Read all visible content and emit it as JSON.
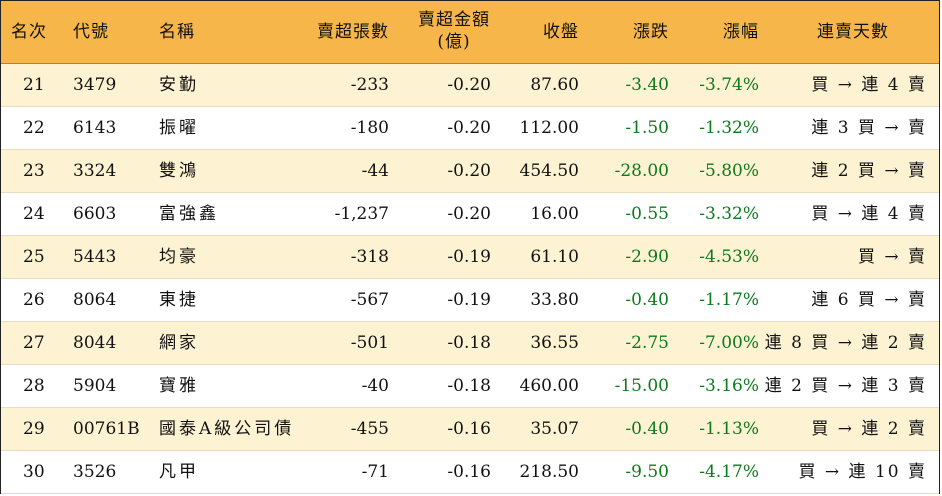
{
  "headers": {
    "rank": "名次",
    "code": "代號",
    "name": "名稱",
    "net_sell_lots": "賣超張數",
    "net_sell_amount_line1": "賣超金額",
    "net_sell_amount_line2": "(億)",
    "close": "收盤",
    "change": "漲跌",
    "change_pct": "漲幅",
    "streak": "連賣天數"
  },
  "rows": [
    {
      "rank": "21",
      "code": "3479",
      "name": "安勤",
      "lots": "-233",
      "amount": "-0.20",
      "close": "87.60",
      "change": "-3.40",
      "pct": "-3.74%",
      "streak": "買 → 連 4 賣"
    },
    {
      "rank": "22",
      "code": "6143",
      "name": "振曜",
      "lots": "-180",
      "amount": "-0.20",
      "close": "112.00",
      "change": "-1.50",
      "pct": "-1.32%",
      "streak": "連 3 買 → 賣"
    },
    {
      "rank": "23",
      "code": "3324",
      "name": "雙鴻",
      "lots": "-44",
      "amount": "-0.20",
      "close": "454.50",
      "change": "-28.00",
      "pct": "-5.80%",
      "streak": "連 2 買 → 賣"
    },
    {
      "rank": "24",
      "code": "6603",
      "name": "富強鑫",
      "lots": "-1,237",
      "amount": "-0.20",
      "close": "16.00",
      "change": "-0.55",
      "pct": "-3.32%",
      "streak": "買 → 連 4 賣"
    },
    {
      "rank": "25",
      "code": "5443",
      "name": "均豪",
      "lots": "-318",
      "amount": "-0.19",
      "close": "61.10",
      "change": "-2.90",
      "pct": "-4.53%",
      "streak": "買 → 賣"
    },
    {
      "rank": "26",
      "code": "8064",
      "name": "東捷",
      "lots": "-567",
      "amount": "-0.19",
      "close": "33.80",
      "change": "-0.40",
      "pct": "-1.17%",
      "streak": "連 6 買 → 賣"
    },
    {
      "rank": "27",
      "code": "8044",
      "name": "網家",
      "lots": "-501",
      "amount": "-0.18",
      "close": "36.55",
      "change": "-2.75",
      "pct": "-7.00%",
      "streak": "連 8 買 → 連 2 賣"
    },
    {
      "rank": "28",
      "code": "5904",
      "name": "寶雅",
      "lots": "-40",
      "amount": "-0.18",
      "close": "460.00",
      "change": "-15.00",
      "pct": "-3.16%",
      "streak": "連 2 買 → 連 3 賣"
    },
    {
      "rank": "29",
      "code": "00761B",
      "name": "國泰A級公司債",
      "lots": "-455",
      "amount": "-0.16",
      "close": "35.07",
      "change": "-0.40",
      "pct": "-1.13%",
      "streak": "買 → 連 2 賣"
    },
    {
      "rank": "30",
      "code": "3526",
      "name": "凡甲",
      "lots": "-71",
      "amount": "-0.16",
      "close": "218.50",
      "change": "-9.50",
      "pct": "-4.17%",
      "streak": "買 → 連 10 賣"
    }
  ],
  "colors": {
    "header_bg": "#f7b64a",
    "odd_row_bg": "#fdf2d2",
    "even_row_bg": "#ffffff",
    "negative_text": "#0c7a1c"
  }
}
